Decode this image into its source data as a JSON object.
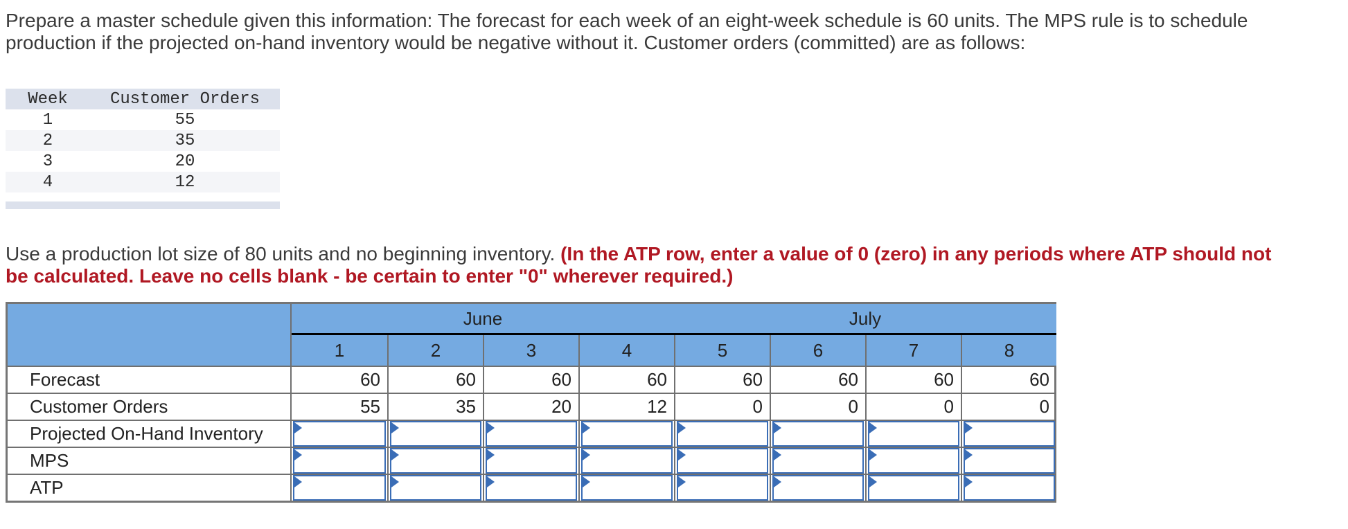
{
  "intro_text": "Prepare a master schedule given this information: The forecast for each week of an eight-week schedule is 60 units. The MPS rule is to schedule production if the projected on-hand inventory would be negative without it. Customer orders (committed) are as follows:",
  "orders_table": {
    "headers": [
      "Week",
      "Customer Orders"
    ],
    "rows": [
      [
        "1",
        "55"
      ],
      [
        "2",
        "35"
      ],
      [
        "3",
        "20"
      ],
      [
        "4",
        "12"
      ]
    ]
  },
  "instruction": {
    "normal": "Use a production lot size of 80 units and no beginning inventory. ",
    "emphasis": "(In the ATP row, enter a value of 0 (zero) in any periods where ATP should not be calculated. Leave no cells blank - be certain to enter \"0\" wherever required.)"
  },
  "mps_table": {
    "month_groups": [
      {
        "label": "June"
      },
      {
        "label": "July"
      }
    ],
    "week_numbers": [
      "1",
      "2",
      "3",
      "4",
      "5",
      "6",
      "7",
      "8"
    ],
    "rows": {
      "forecast": {
        "label": "Forecast",
        "values": [
          "60",
          "60",
          "60",
          "60",
          "60",
          "60",
          "60",
          "60"
        ]
      },
      "customer_orders": {
        "label": "Customer Orders",
        "values": [
          "55",
          "35",
          "20",
          "12",
          "0",
          "0",
          "0",
          "0"
        ]
      },
      "projected_on_hand": {
        "label": "Projected On-Hand Inventory"
      },
      "mps": {
        "label": "MPS"
      },
      "atp": {
        "label": "ATP"
      }
    }
  },
  "colors": {
    "header_blue": "#75aae1",
    "input_border_blue": "#3a6db6",
    "grid_gray": "#707070",
    "instruction_red": "#b01823",
    "orders_header_bg": "#dce1ec",
    "orders_alt_row_bg": "#f4f5f8"
  }
}
